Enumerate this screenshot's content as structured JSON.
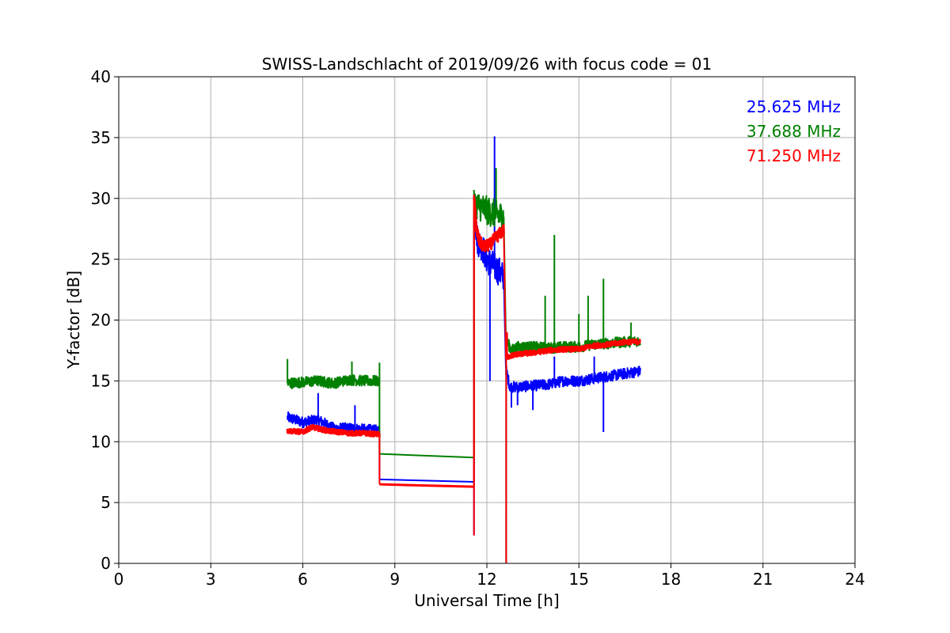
{
  "chart_data": {
    "type": "line",
    "title": "SWISS-Landschlacht of 2019/09/26 with focus code = 01",
    "xlabel": "Universal Time [h]",
    "ylabel": "Y-factor [dB]",
    "xlim": [
      0,
      24
    ],
    "ylim": [
      0,
      40
    ],
    "xticks": [
      "0",
      "3",
      "6",
      "9",
      "12",
      "15",
      "18",
      "21",
      "24"
    ],
    "yticks": [
      "0",
      "5",
      "10",
      "15",
      "20",
      "25",
      "30",
      "35",
      "40"
    ],
    "grid": true,
    "legend_position": "top-right",
    "series": [
      {
        "name": "25.625 MHz",
        "color": "#0000ff",
        "segments": [
          {
            "x": [
              5.5,
              6.0,
              6.5,
              7.0,
              7.5,
              8.0,
              8.5
            ],
            "y": [
              12.0,
              11.6,
              11.8,
              11.1,
              11.1,
              11.0,
              10.9
            ]
          },
          {
            "x": [
              8.5,
              11.58
            ],
            "y": [
              6.9,
              6.7
            ]
          },
          {
            "x": [
              11.58,
              11.7,
              11.85,
              12.0,
              12.2,
              12.4,
              12.55
            ],
            "y": [
              29.0,
              26.5,
              26.0,
              25.0,
              24.5,
              24.0,
              23.5
            ]
          },
          {
            "x": [
              12.62,
              12.75,
              13.0,
              13.5,
              14.0,
              14.5,
              15.0,
              15.5,
              16.0,
              16.5,
              17.0
            ],
            "y": [
              16.0,
              14.5,
              14.5,
              14.6,
              14.7,
              15.0,
              15.0,
              15.2,
              15.4,
              15.6,
              15.8
            ]
          }
        ],
        "spikes": [
          {
            "x": 6.5,
            "y": 14.0
          },
          {
            "x": 7.7,
            "y": 13.0
          },
          {
            "x": 11.58,
            "y": 2.3
          },
          {
            "x": 12.25,
            "y": 35.1
          },
          {
            "x": 12.1,
            "y": 15.0
          },
          {
            "x": 12.63,
            "y": 0.0
          },
          {
            "x": 12.8,
            "y": 12.8
          },
          {
            "x": 13.0,
            "y": 13.0
          },
          {
            "x": 13.5,
            "y": 12.6
          },
          {
            "x": 14.2,
            "y": 17.0
          },
          {
            "x": 15.5,
            "y": 17.0
          },
          {
            "x": 15.8,
            "y": 10.8
          }
        ]
      },
      {
        "name": "37.688 MHz",
        "color": "#008000",
        "segments": [
          {
            "x": [
              5.5,
              6.0,
              6.5,
              7.0,
              7.5,
              8.0,
              8.5
            ],
            "y": [
              14.8,
              14.9,
              15.0,
              14.8,
              15.1,
              15.0,
              15.0
            ]
          },
          {
            "x": [
              8.5,
              11.58
            ],
            "y": [
              9.0,
              8.7
            ]
          },
          {
            "x": [
              11.58,
              11.8,
              12.0,
              12.2,
              12.4,
              12.55
            ],
            "y": [
              29.5,
              29.3,
              29.0,
              28.8,
              28.6,
              28.5
            ]
          },
          {
            "x": [
              12.62,
              12.8,
              13.0,
              13.5,
              14.0,
              14.5,
              15.0,
              15.5,
              16.0,
              16.5,
              17.0
            ],
            "y": [
              18.5,
              17.5,
              17.8,
              17.8,
              17.7,
              17.8,
              17.8,
              18.0,
              18.1,
              18.2,
              18.3
            ]
          }
        ],
        "spikes": [
          {
            "x": 5.5,
            "y": 16.8
          },
          {
            "x": 7.6,
            "y": 16.6
          },
          {
            "x": 8.5,
            "y": 16.5
          },
          {
            "x": 12.3,
            "y": 32.5
          },
          {
            "x": 12.63,
            "y": 0.0
          },
          {
            "x": 13.0,
            "y": 18.0
          },
          {
            "x": 13.9,
            "y": 22.0
          },
          {
            "x": 14.2,
            "y": 27.0
          },
          {
            "x": 15.0,
            "y": 20.5
          },
          {
            "x": 15.3,
            "y": 22.0
          },
          {
            "x": 15.8,
            "y": 23.4
          },
          {
            "x": 16.7,
            "y": 19.8
          }
        ]
      },
      {
        "name": "71.250 MHz",
        "color": "#ff0000",
        "segments": [
          {
            "x": [
              5.5,
              6.0,
              6.3,
              6.8,
              7.5,
              8.0,
              8.5
            ],
            "y": [
              10.9,
              10.8,
              11.2,
              10.9,
              10.7,
              10.7,
              10.6
            ]
          },
          {
            "x": [
              8.5,
              11.58
            ],
            "y": [
              6.5,
              6.3
            ]
          },
          {
            "x": [
              11.58,
              11.65,
              11.75,
              11.9,
              12.1,
              12.3,
              12.55
            ],
            "y": [
              30.3,
              27.5,
              26.5,
              26.0,
              26.2,
              26.8,
              27.4
            ]
          },
          {
            "x": [
              12.62,
              12.7,
              13.0,
              13.5,
              14.0,
              14.5,
              15.0,
              15.5,
              16.0,
              16.5,
              17.0
            ],
            "y": [
              17.0,
              17.0,
              17.2,
              17.3,
              17.5,
              17.6,
              17.6,
              17.9,
              18.0,
              18.2,
              18.2
            ]
          }
        ],
        "spikes": [
          {
            "x": 11.58,
            "y": 2.3
          },
          {
            "x": 12.63,
            "y": 0.0
          },
          {
            "x": 12.66,
            "y": 19.0
          }
        ]
      }
    ]
  }
}
